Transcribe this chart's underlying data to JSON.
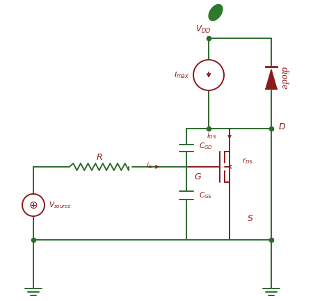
{
  "line_color": "#2d6a2d",
  "text_color": "#8B1A1A",
  "dot_color": "#2d6a2d",
  "background": "#ffffff"
}
